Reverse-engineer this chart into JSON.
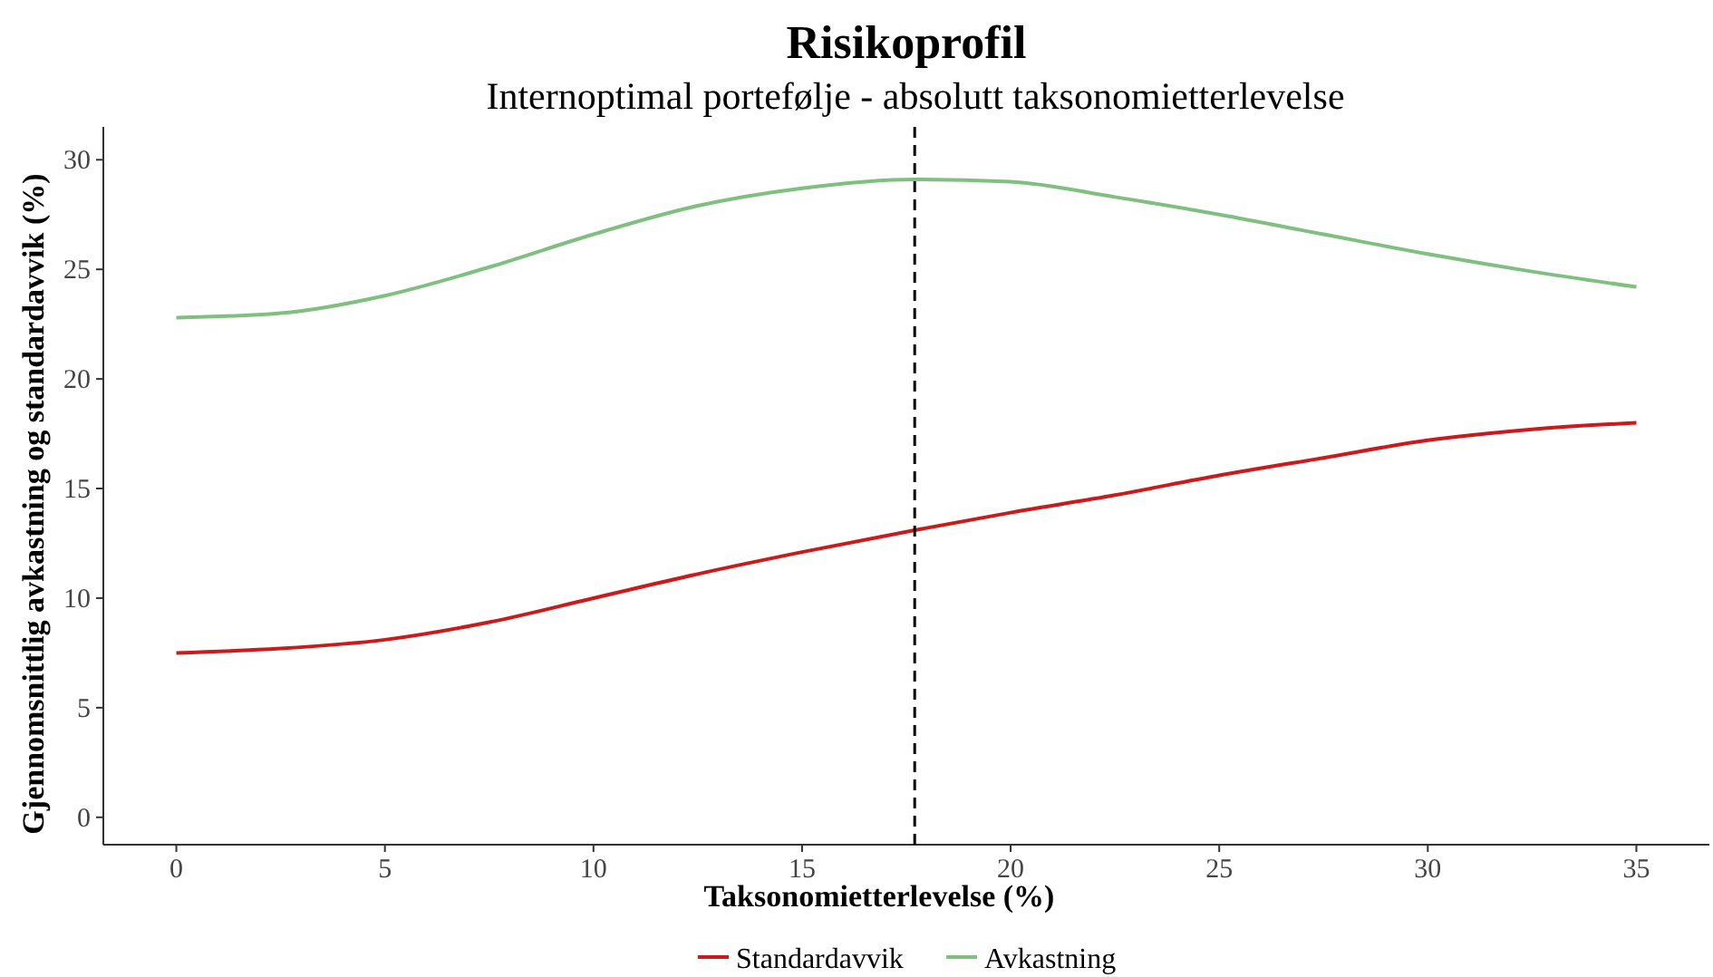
{
  "chart_data": {
    "type": "line",
    "title": "Risikoprofil",
    "subtitle": "Internoptimal portefølje - absolutt taksonomietterlevelse",
    "xlabel": "Taksonomietterlevelse (%)",
    "ylabel": "Gjennomsnittlig avkastning og standardavvik (%)",
    "x": [
      0,
      2.5,
      5,
      7.5,
      10,
      12.5,
      15,
      17.7,
      20,
      22.5,
      25,
      27.5,
      30,
      32.5,
      35
    ],
    "series": [
      {
        "name": "Standardavvik",
        "color": "#cc1a1a",
        "values": [
          7.5,
          7.7,
          8.1,
          8.9,
          10.0,
          11.1,
          12.1,
          13.1,
          13.9,
          14.7,
          15.6,
          16.4,
          17.2,
          17.7,
          18.0
        ]
      },
      {
        "name": "Avkastning",
        "color": "#7fbf7f",
        "values": [
          22.8,
          23.0,
          23.8,
          25.1,
          26.6,
          27.9,
          28.7,
          29.1,
          29.0,
          28.3,
          27.5,
          26.6,
          25.7,
          24.9,
          24.2
        ]
      }
    ],
    "xlim": [
      -1.75,
      36.75
    ],
    "ylim": [
      -1.25,
      31.5
    ],
    "xticks": [
      0,
      5,
      10,
      15,
      20,
      25,
      30,
      35
    ],
    "yticks": [
      0,
      5,
      10,
      15,
      20,
      25,
      30
    ],
    "ref_lines": [
      {
        "axis": "x",
        "value": 17.7,
        "color": "#000000",
        "line_style": "dashed"
      }
    ],
    "grid": false,
    "legend": "bottom"
  }
}
